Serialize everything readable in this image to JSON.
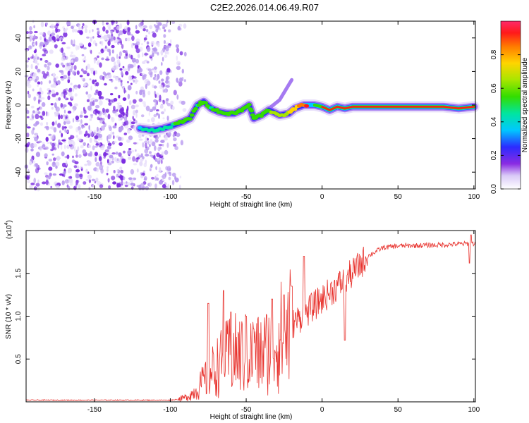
{
  "title": "C2E2.2026.014.06.49.R07",
  "chart_data": [
    {
      "type": "heatmap",
      "name": "spectrogram",
      "xlabel": "Height of straight line (km)",
      "ylabel": "Frequency (Hz)",
      "xlim": [
        -195,
        101
      ],
      "ylim": [
        -50,
        50
      ],
      "xticks": [
        -150,
        -100,
        -50,
        0,
        50,
        100
      ],
      "yticks": [
        -40,
        -20,
        0,
        20,
        40
      ],
      "noise_region": [
        -195,
        -100
      ],
      "track": [
        {
          "x": -120,
          "y": -14,
          "a": 0.35
        },
        {
          "x": -112,
          "y": -15,
          "a": 0.4
        },
        {
          "x": -105,
          "y": -14,
          "a": 0.42
        },
        {
          "x": -98,
          "y": -12,
          "a": 0.45
        },
        {
          "x": -92,
          "y": -10,
          "a": 0.5
        },
        {
          "x": -87,
          "y": -8,
          "a": 0.5
        },
        {
          "x": -82,
          "y": 0,
          "a": 0.45
        },
        {
          "x": -78,
          "y": 2,
          "a": 0.5
        },
        {
          "x": -73,
          "y": -2,
          "a": 0.45
        },
        {
          "x": -68,
          "y": -4,
          "a": 0.5
        },
        {
          "x": -63,
          "y": -5,
          "a": 0.5
        },
        {
          "x": -58,
          "y": -5,
          "a": 0.55
        },
        {
          "x": -53,
          "y": -3,
          "a": 0.5
        },
        {
          "x": -48,
          "y": 0,
          "a": 0.5
        },
        {
          "x": -45,
          "y": -8,
          "a": 0.5
        },
        {
          "x": -40,
          "y": -6,
          "a": 0.5
        },
        {
          "x": -35,
          "y": -3,
          "a": 0.55
        },
        {
          "x": -28,
          "y": -6,
          "a": 0.6
        },
        {
          "x": -22,
          "y": -5,
          "a": 0.65
        },
        {
          "x": -18,
          "y": -2,
          "a": 0.7
        },
        {
          "x": -12,
          "y": 0,
          "a": 0.85
        },
        {
          "x": -5,
          "y": 0,
          "a": 0.9
        },
        {
          "x": 0,
          "y": -1,
          "a": 0.9
        },
        {
          "x": 5,
          "y": -3,
          "a": 0.95
        },
        {
          "x": 10,
          "y": -1,
          "a": 0.9
        },
        {
          "x": 15,
          "y": -2,
          "a": 0.95
        },
        {
          "x": 20,
          "y": -1,
          "a": 0.95
        },
        {
          "x": 30,
          "y": -1,
          "a": 0.95
        },
        {
          "x": 40,
          "y": -1,
          "a": 0.95
        },
        {
          "x": 50,
          "y": -1,
          "a": 0.95
        },
        {
          "x": 60,
          "y": -1,
          "a": 0.95
        },
        {
          "x": 70,
          "y": -1,
          "a": 0.95
        },
        {
          "x": 80,
          "y": -1,
          "a": 0.95
        },
        {
          "x": 90,
          "y": -2,
          "a": 0.95
        },
        {
          "x": 100,
          "y": -1,
          "a": 0.9
        }
      ],
      "branch": [
        {
          "x": -35,
          "y": -2
        },
        {
          "x": -28,
          "y": 3
        },
        {
          "x": -22,
          "y": 12
        },
        {
          "x": -20,
          "y": 15
        }
      ]
    },
    {
      "type": "colorbar",
      "name": "colorbar",
      "label": "Normalized spectral amplitude",
      "range": [
        0,
        1
      ],
      "ticks": [
        "0.0",
        "0.2",
        "0.4",
        "0.6",
        "0.8"
      ],
      "tick_values": [
        0,
        0.2,
        0.4,
        0.6,
        0.8
      ]
    },
    {
      "type": "line",
      "name": "snr",
      "color": "#e8332e",
      "xlabel": "Height of straight line (km)",
      "ylabel": "SNR (10 * v/v)",
      "y_exponent": "(x10",
      "y_exponent_power": "4",
      "y_exponent_close": ")",
      "xlim": [
        -195,
        101
      ],
      "ylim": [
        0,
        2
      ],
      "xticks": [
        -150,
        -100,
        -50,
        0,
        50,
        100
      ],
      "yticks": [
        "0.5",
        "1.0",
        "1.5"
      ],
      "ytick_values": [
        0.5,
        1.0,
        1.5
      ],
      "envelope": [
        {
          "x": -195,
          "y": 0.02
        },
        {
          "x": -100,
          "y": 0.02
        },
        {
          "x": -95,
          "y": 0.03
        },
        {
          "x": -90,
          "y": 0.05
        },
        {
          "x": -85,
          "y": 0.1
        },
        {
          "x": -80,
          "y": 0.2
        },
        {
          "x": -70,
          "y": 0.4
        },
        {
          "x": -60,
          "y": 0.55
        },
        {
          "x": -50,
          "y": 0.55
        },
        {
          "x": -40,
          "y": 0.55
        },
        {
          "x": -30,
          "y": 0.7
        },
        {
          "x": -20,
          "y": 0.9
        },
        {
          "x": -10,
          "y": 1.05
        },
        {
          "x": 0,
          "y": 1.2
        },
        {
          "x": 10,
          "y": 1.35
        },
        {
          "x": 20,
          "y": 1.5
        },
        {
          "x": 30,
          "y": 1.7
        },
        {
          "x": 40,
          "y": 1.8
        },
        {
          "x": 50,
          "y": 1.82
        },
        {
          "x": 75,
          "y": 1.83
        },
        {
          "x": 100,
          "y": 1.85
        }
      ],
      "peaks": [
        {
          "x": -75,
          "y": 1.15
        },
        {
          "x": -65,
          "y": 1.3
        },
        {
          "x": -60,
          "y": 1.05
        },
        {
          "x": -50,
          "y": 1.0
        },
        {
          "x": -45,
          "y": 0.85
        },
        {
          "x": -33,
          "y": 1.2
        },
        {
          "x": -25,
          "y": 1.25
        },
        {
          "x": -20,
          "y": 1.35
        },
        {
          "x": -12,
          "y": 1.7
        },
        {
          "x": 15,
          "y": 0.72
        },
        {
          "x": 97,
          "y": 1.62
        },
        {
          "x": 98,
          "y": 1.95
        }
      ]
    }
  ]
}
